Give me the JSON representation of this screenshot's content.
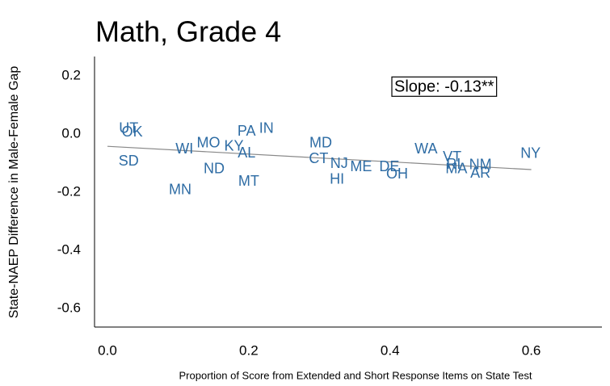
{
  "chart_data": {
    "type": "scatter",
    "title": "Math, Grade 4",
    "xlabel": "Proportion of Score from Extended and Short Response Items on State Test",
    "ylabel": "State-NAEP Difference in Male-Female Gap",
    "annotation": "Slope: -0.13**",
    "color": "#2e6ca4",
    "labels": [
      "UT",
      "OK",
      "SD",
      "WI",
      "MO",
      "KY",
      "AL",
      "ND",
      "MN",
      "MT",
      "PA",
      "IN",
      "MD",
      "CT",
      "NJ",
      "HI",
      "ME",
      "DE",
      "OH",
      "WA",
      "VT",
      "RI",
      "NM",
      "MA",
      "AR",
      "NY"
    ],
    "x": [
      0.03,
      0.035,
      0.03,
      0.109,
      0.143,
      0.179,
      0.197,
      0.151,
      0.103,
      0.2,
      0.197,
      0.225,
      0.302,
      0.299,
      0.328,
      0.325,
      0.359,
      0.399,
      0.41,
      0.451,
      0.488,
      0.49,
      0.528,
      0.494,
      0.528,
      0.599
    ],
    "y": [
      0.017,
      0.005,
      -0.095,
      -0.053,
      -0.033,
      -0.044,
      -0.067,
      -0.122,
      -0.194,
      -0.164,
      0.008,
      0.017,
      -0.033,
      -0.086,
      -0.103,
      -0.158,
      -0.114,
      -0.114,
      -0.139,
      -0.053,
      -0.081,
      -0.106,
      -0.108,
      -0.122,
      -0.136,
      -0.069
    ],
    "trend": {
      "x": [
        0.0,
        0.6
      ],
      "y": [
        -0.042,
        -0.122
      ],
      "color": "#888888"
    },
    "xlim": [
      -0.0183,
      0.7
    ],
    "ylim": [
      -0.664,
      0.267
    ],
    "xticks": [
      {
        "value": 0,
        "label": "0.0"
      },
      0.2,
      0.4,
      0.6
    ],
    "yticks": [
      0.2,
      {
        "value": 0,
        "label": "0.0"
      },
      -0.2,
      -0.4,
      -0.6
    ]
  }
}
